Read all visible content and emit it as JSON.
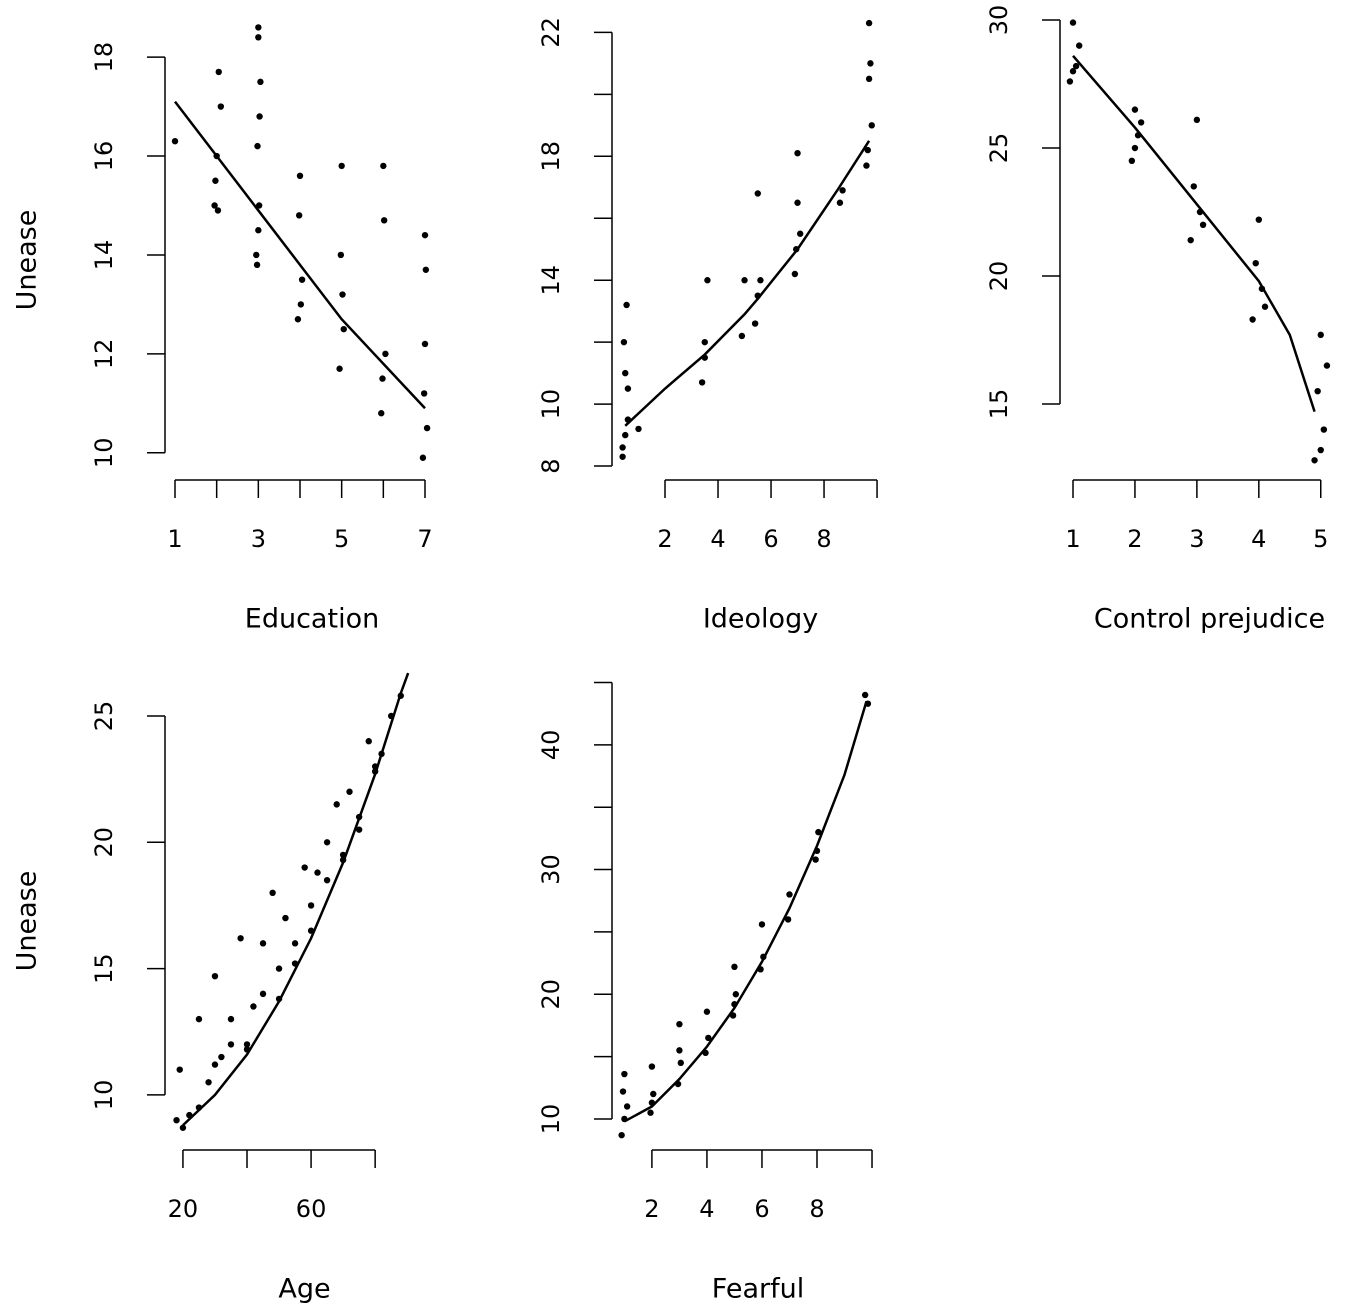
{
  "chart_data": [
    {
      "type": "scatter",
      "x_label": "Education",
      "y_label": "Unease",
      "xlim": [
        0.76,
        7.24
      ],
      "ylim": [
        9.45,
        18.75
      ],
      "xticks": [
        1,
        3,
        5,
        7
      ],
      "xminor": [
        2,
        4,
        6
      ],
      "yticks": [
        10,
        12,
        14,
        16,
        18
      ],
      "yminor": [],
      "points": {
        "color": "#000000",
        "x": [
          1,
          1.95,
          2,
          2.05,
          2.1,
          1.97,
          2.03,
          2.95,
          3,
          3.05,
          2.98,
          3.02,
          3,
          2.97,
          3.03,
          3,
          3.95,
          4,
          4.05,
          3.98,
          4.02,
          4.95,
          5,
          5.05,
          4.98,
          5.02,
          5.95,
          6,
          6.05,
          5.98,
          6.02,
          6.95,
          7,
          7.05,
          6.98,
          7.02,
          7
        ],
        "y": [
          16.3,
          15,
          16,
          17.7,
          17,
          15.5,
          14.9,
          14,
          18.6,
          17.5,
          16.2,
          15,
          14.5,
          13.8,
          16.8,
          18.4,
          12.7,
          15.6,
          13.5,
          14.8,
          13,
          11.7,
          15.8,
          12.5,
          14,
          13.2,
          10.8,
          15.8,
          12,
          11.5,
          14.7,
          9.9,
          14.4,
          10.5,
          11.2,
          13.7,
          12.2
        ]
      },
      "curve": {
        "color": "#000000",
        "x": [
          1,
          2,
          3,
          4,
          5,
          6,
          7
        ],
        "y": [
          17.1,
          16.0,
          14.9,
          13.8,
          12.7,
          11.8,
          10.9
        ]
      }
    },
    {
      "type": "scatter",
      "x_label": "Ideology",
      "xlim": [
        0,
        10.3
      ],
      "ylim": [
        7.55,
        22.4
      ],
      "xticks": [
        2,
        4,
        6,
        8
      ],
      "xminor": [
        10
      ],
      "yticks": [
        8,
        10,
        14,
        18,
        22
      ],
      "yminor": [
        12,
        16,
        20
      ],
      "points": {
        "color": "#000000",
        "x": [
          0.4,
          0.5,
          0.6,
          0.45,
          0.55,
          0.5,
          0.6,
          0.4,
          1,
          3.4,
          3.5,
          3.6,
          3.5,
          4.9,
          5,
          5.4,
          5.5,
          5.6,
          5.5,
          6.9,
          7,
          7.1,
          7,
          6.95,
          8.6,
          8.7,
          9.6,
          9.7,
          9.8,
          9.7,
          9.65,
          9.75
        ],
        "y": [
          8.3,
          9,
          10.5,
          12,
          13.2,
          11,
          9.5,
          8.6,
          9.2,
          10.7,
          12,
          14,
          11.5,
          12.2,
          14,
          12.6,
          16.8,
          14,
          13.5,
          14.2,
          18.1,
          15.5,
          16.5,
          15,
          16.5,
          16.9,
          17.7,
          22.3,
          19,
          20.5,
          18.2,
          21
        ]
      },
      "curve": {
        "color": "#000000",
        "x": [
          0.5,
          2,
          3.5,
          5,
          5.5,
          7,
          8.5,
          9.7
        ],
        "y": [
          9.3,
          10.5,
          11.6,
          12.9,
          13.4,
          15,
          16.9,
          18.5
        ]
      }
    },
    {
      "type": "scatter",
      "x_label": "Control prejudice",
      "xlim": [
        0.79,
        5.23
      ],
      "ylim": [
        12.03,
        30.47
      ],
      "xticks": [
        1,
        2,
        3,
        4,
        5
      ],
      "xminor": [],
      "yticks": [
        15,
        20,
        25,
        30
      ],
      "yminor": [],
      "points": {
        "color": "#000000",
        "x": [
          0.95,
          1,
          1.05,
          1.1,
          1,
          1.95,
          2,
          2.05,
          2,
          2.1,
          2.9,
          3,
          3.05,
          2.95,
          3.1,
          3.9,
          4,
          4.05,
          3.95,
          4.1,
          4.9,
          5,
          5.05,
          4.95,
          5.1,
          5
        ],
        "y": [
          27.6,
          29.9,
          28.2,
          29,
          28,
          24.5,
          26.5,
          25.5,
          25,
          26,
          21.4,
          26.1,
          22.5,
          23.5,
          22,
          18.3,
          22.2,
          19.5,
          20.5,
          18.8,
          12.8,
          17.7,
          14,
          15.5,
          16.5,
          13.2
        ]
      },
      "curve": {
        "color": "#000000",
        "x": [
          1,
          2,
          3,
          4,
          4.5,
          4.9
        ],
        "y": [
          28.6,
          25.8,
          22.8,
          19.8,
          17.7,
          14.7
        ]
      }
    },
    {
      "type": "scatter",
      "x_label": "Age",
      "y_label": "Unease",
      "xlim": [
        14.4,
        94
      ],
      "ylim": [
        7.82,
        26.74
      ],
      "xticks": [
        20,
        60
      ],
      "xminor": [
        40,
        80
      ],
      "yticks": [
        10,
        15,
        20,
        25
      ],
      "yminor": [],
      "points": {
        "color": "#000000",
        "x": [
          18,
          20,
          22,
          19,
          25,
          28,
          30,
          32,
          35,
          38,
          40,
          42,
          45,
          48,
          50,
          52,
          55,
          58,
          60,
          62,
          65,
          68,
          70,
          72,
          75,
          78,
          80,
          82,
          85,
          88,
          30,
          40,
          50,
          60,
          70,
          80,
          25,
          35,
          45,
          55,
          65,
          75
        ],
        "y": [
          9,
          8.7,
          9.2,
          11,
          13,
          10.5,
          14.7,
          11.5,
          12,
          16.2,
          12,
          13.5,
          14,
          18,
          15,
          17,
          16,
          19,
          17.5,
          18.8,
          20,
          21.5,
          19.5,
          22,
          21,
          24,
          23,
          23.5,
          25,
          25.8,
          11.2,
          11.8,
          13.8,
          16.5,
          19.3,
          22.8,
          9.5,
          13,
          16,
          15.2,
          18.5,
          20.5
        ]
      },
      "curve": {
        "color": "#000000",
        "x": [
          20,
          30,
          40,
          50,
          60,
          70,
          80,
          88,
          90.3
        ],
        "y": [
          8.8,
          10,
          11.6,
          13.7,
          16.2,
          19.2,
          22.7,
          25.9,
          26.7
        ]
      }
    },
    {
      "type": "scatter",
      "x_label": "Fearful",
      "xlim": [
        0.55,
        10.29
      ],
      "ylim": [
        7.51,
        45.2
      ],
      "xticks": [
        2,
        4,
        6,
        8
      ],
      "xminor": [
        10
      ],
      "yticks": [
        10,
        20,
        30,
        40
      ],
      "yminor": [
        15,
        25,
        35,
        45
      ],
      "points": {
        "color": "#000000",
        "x": [
          0.9,
          1,
          1.1,
          1,
          0.95,
          1.95,
          2,
          2.05,
          2,
          2.95,
          3,
          3.05,
          3,
          3.95,
          4,
          4.05,
          4.95,
          5,
          5.05,
          5,
          5.95,
          6,
          6.05,
          6.95,
          7,
          7.95,
          8.05,
          8,
          9.75,
          9.85
        ],
        "y": [
          8.7,
          13.6,
          11,
          10,
          12.2,
          10.5,
          14.2,
          12,
          11.3,
          12.8,
          17.6,
          14.5,
          15.5,
          15.3,
          18.6,
          16.5,
          18.3,
          22.2,
          20,
          19.2,
          22,
          25.6,
          23,
          26,
          28,
          30.8,
          33,
          31.5,
          44,
          43.3
        ]
      },
      "curve": {
        "color": "#000000",
        "x": [
          1,
          2,
          3,
          4,
          5,
          6,
          7,
          8,
          9,
          9.8
        ],
        "y": [
          9.8,
          11,
          13.2,
          15.8,
          18.9,
          22.6,
          26.9,
          31.9,
          37.6,
          43.5
        ]
      }
    }
  ]
}
